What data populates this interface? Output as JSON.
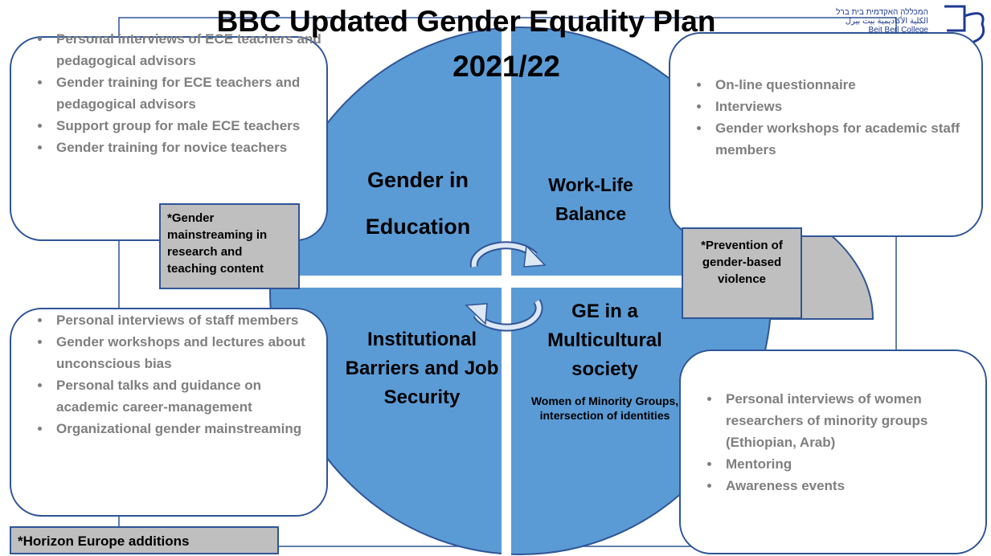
{
  "header": {
    "title": "BBC Updated Gender Equality Plan",
    "subtitle": "2021/22"
  },
  "logo": {
    "hebrew": "המכללה האקדמית בית ברל",
    "arabic": "الكلية الأكاديمية بيت بيرل",
    "english": "Beit Berl College"
  },
  "quadrants": [
    {
      "label": "Gender in Education"
    },
    {
      "label": "Work-Life Balance"
    },
    {
      "label": "Institutional Barriers and Job Security"
    },
    {
      "label": "GE in a Multicultural society",
      "sublabel": "Women of Minority Groups, intersection of identities"
    }
  ],
  "boxes": [
    {
      "items": [
        "Personal interviews of ECE teachers and pedagogical advisors",
        "Gender training for ECE teachers and pedagogical advisors",
        "Support group for male ECE teachers",
        "Gender training for novice teachers"
      ]
    },
    {
      "items": [
        "On-line questionnaire",
        "Interviews",
        "Gender workshops for academic staff members"
      ]
    },
    {
      "items": [
        "Personal interviews of staff members",
        "Gender workshops and lectures about unconscious bias",
        "Personal talks and guidance on academic career-management",
        "Organizational gender mainstreaming"
      ]
    },
    {
      "items": [
        "Personal interviews of women researchers of minority groups (Ethiopian, Arab)",
        "Mentoring",
        "Awareness events"
      ]
    }
  ],
  "notes": [
    "*Gender mainstreaming in research and teaching content",
    "*Prevention of gender-based violence",
    "*Horizon Europe additions"
  ]
}
